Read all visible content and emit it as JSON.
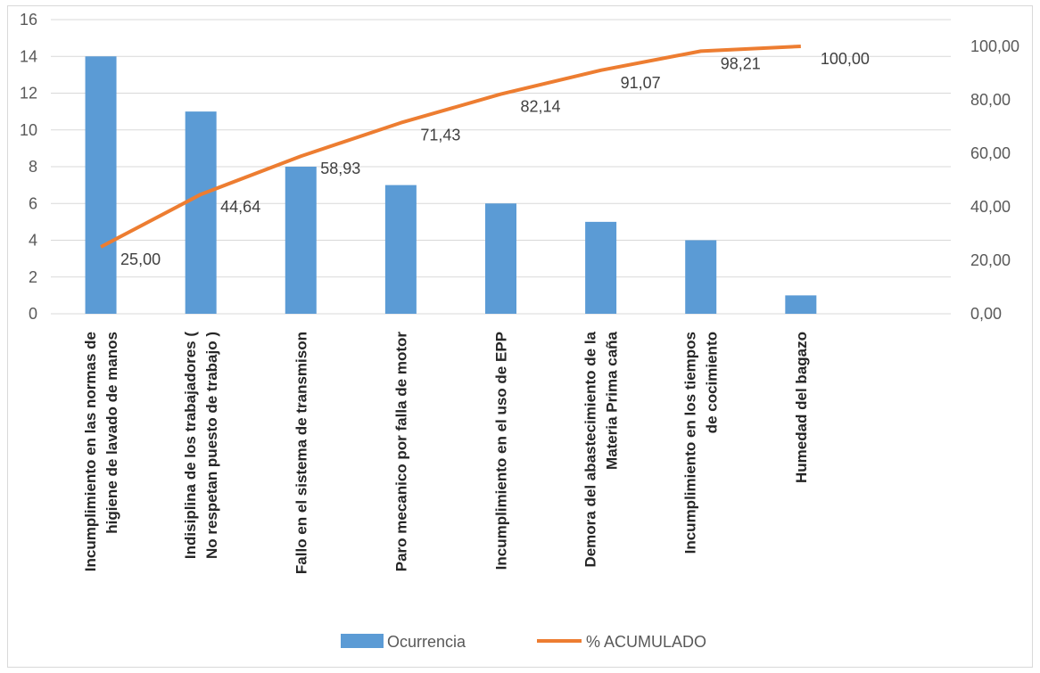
{
  "chart_data": {
    "type": "bar+line",
    "title": "",
    "categories": [
      [
        "Incumplimiento en las normas de",
        "higiene de lavado de manos"
      ],
      [
        "Indisiplina de los trabajadores (",
        "No respetan puesto de trabajo )"
      ],
      [
        "Fallo en el sistema de transmison"
      ],
      [
        "Paro mecanico por falla de motor"
      ],
      [
        "Incumplimiento en el uso de EPP"
      ],
      [
        "Demora del abastecimiento de la",
        "Materia Prima caña"
      ],
      [
        "Incumplimiento en los tiempos",
        "de cocimiento"
      ],
      [
        "Humedad del bagazo"
      ]
    ],
    "series": [
      {
        "name": "Ocurrencia",
        "type": "bar",
        "axis": "left",
        "color": "#5b9bd5",
        "values": [
          14,
          11,
          8,
          7,
          6,
          5,
          4,
          1
        ]
      },
      {
        "name": "% ACUMULADO",
        "type": "line",
        "axis": "right",
        "color": "#ed7d31",
        "values": [
          25.0,
          44.64,
          58.93,
          71.43,
          82.14,
          91.07,
          98.21,
          100.0
        ],
        "labels": [
          "25,00",
          "44,64",
          "58,93",
          "71,43",
          "82,14",
          "91,07",
          "98,21",
          "100,00"
        ]
      }
    ],
    "y_left": {
      "min": 0,
      "max": 16,
      "step": 2,
      "ticks": [
        "0",
        "2",
        "4",
        "6",
        "8",
        "10",
        "12",
        "14",
        "16"
      ]
    },
    "y_right": {
      "min": 0,
      "max": 110,
      "ticks": [
        {
          "value": 0,
          "label": "0,00"
        },
        {
          "value": 20,
          "label": "20,00"
        },
        {
          "value": 40,
          "label": "40,00"
        },
        {
          "value": 60,
          "label": "60,00"
        },
        {
          "value": 80,
          "label": "80,00"
        },
        {
          "value": 100,
          "label": "100,00"
        }
      ]
    },
    "grid": true,
    "legend": "bottom"
  }
}
